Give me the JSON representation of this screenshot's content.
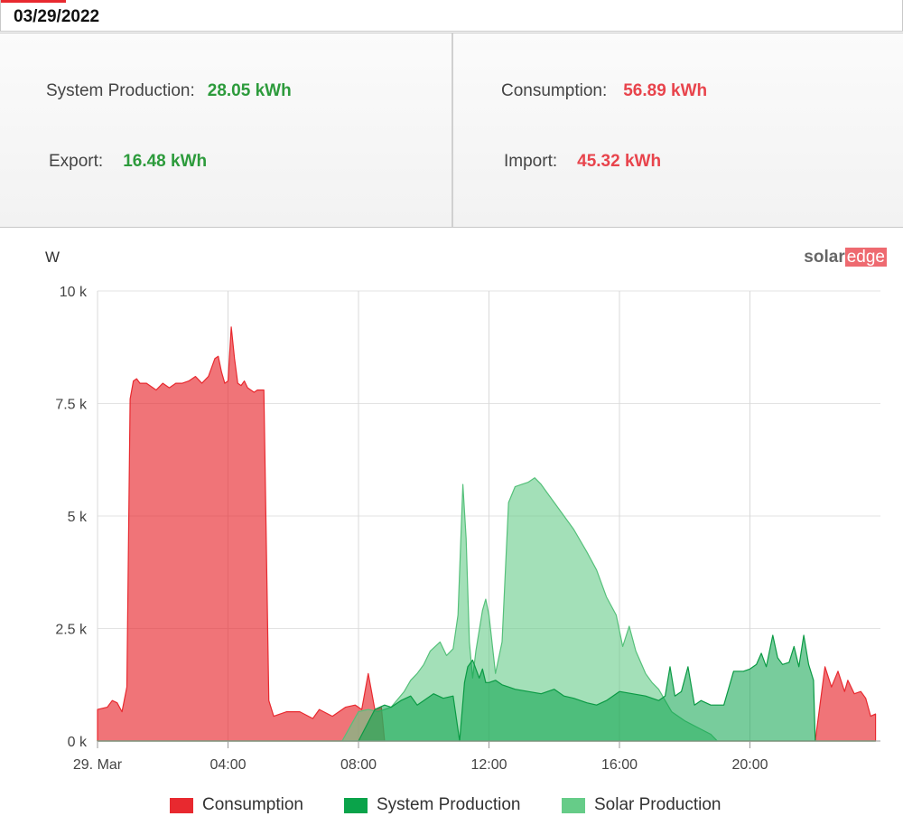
{
  "header": {
    "date": "03/29/2022"
  },
  "summary": {
    "system_production": {
      "label": "System Production:",
      "value": "28.05 kWh"
    },
    "consumption": {
      "label": "Consumption:",
      "value": "56.89 kWh"
    },
    "export": {
      "label": "Export:",
      "value": "16.48 kWh"
    },
    "import": {
      "label": "Import:",
      "value": "45.32 kWh"
    }
  },
  "logo": {
    "part1": "solar",
    "part2": "edge"
  },
  "colors": {
    "consumption": "#e8292f",
    "system_production": "#0aa34a",
    "solar_production": "#66cc88",
    "value_green": "#2d9b3c",
    "value_red": "#e8444c"
  },
  "chart_data": {
    "type": "area",
    "ylabel": "W",
    "ylim": [
      0,
      10000
    ],
    "yticks": [
      0,
      2500,
      5000,
      7500,
      10000
    ],
    "ytick_labels": [
      "0 k",
      "2.5 k",
      "5 k",
      "7.5 k",
      "10 k"
    ],
    "xlim": [
      0,
      24
    ],
    "xticks": [
      0,
      4,
      8,
      12,
      16,
      20
    ],
    "xtick_labels": [
      "29. Mar",
      "04:00",
      "08:00",
      "12:00",
      "16:00",
      "20:00"
    ],
    "grid": true,
    "legend_position": "bottom",
    "series": [
      {
        "name": "Consumption",
        "x": [
          0,
          0.3,
          0.45,
          0.6,
          0.75,
          0.9,
          1.0,
          1.1,
          1.2,
          1.3,
          1.5,
          1.8,
          2.0,
          2.2,
          2.4,
          2.6,
          2.8,
          3.0,
          3.2,
          3.4,
          3.6,
          3.7,
          3.8,
          3.9,
          4.0,
          4.1,
          4.2,
          4.3,
          4.4,
          4.5,
          4.6,
          4.8,
          4.9,
          5.1,
          5.25,
          5.4,
          5.6,
          5.8,
          6.2,
          6.6,
          6.8,
          7.2,
          7.6,
          7.9,
          8.1,
          8.3,
          8.5,
          8.7,
          8.8,
          9.0,
          10.0,
          21.5,
          21.75,
          22.0,
          22.3,
          22.5,
          22.7,
          22.9,
          23.0,
          23.2,
          23.4,
          23.55,
          23.7,
          23.85
        ],
        "y": [
          700,
          750,
          900,
          850,
          650,
          1200,
          7600,
          8000,
          8050,
          7950,
          7950,
          7800,
          7950,
          7850,
          7950,
          7950,
          8000,
          8100,
          7950,
          8100,
          8500,
          8550,
          8200,
          7950,
          8000,
          9200,
          8500,
          7950,
          7900,
          8000,
          7850,
          7750,
          7800,
          7800,
          900,
          550,
          600,
          650,
          650,
          500,
          700,
          550,
          750,
          800,
          700,
          1500,
          700,
          750,
          0,
          0,
          0,
          0,
          0,
          0,
          1650,
          1200,
          1550,
          1100,
          1350,
          1050,
          1100,
          950,
          550,
          600
        ]
      },
      {
        "name": "System Production",
        "x": [
          0,
          7.5,
          8.0,
          8.5,
          8.8,
          9.0,
          9.3,
          9.6,
          9.8,
          10.0,
          10.3,
          10.6,
          10.9,
          11.1,
          11.25,
          11.35,
          11.5,
          11.7,
          11.8,
          11.9,
          12.0,
          12.2,
          12.4,
          12.6,
          12.8,
          13.2,
          13.6,
          14.0,
          14.3,
          14.6,
          15.0,
          15.3,
          15.6,
          16.0,
          16.4,
          16.8,
          17.2,
          17.4,
          17.55,
          17.7,
          17.9,
          18.1,
          18.3,
          18.5,
          18.8,
          19.2,
          19.5,
          19.8,
          20.0,
          20.2,
          20.35,
          20.5,
          20.7,
          20.85,
          21.0,
          21.2,
          21.35,
          21.5,
          21.65,
          21.8,
          21.95,
          22.0,
          22.5,
          23.85
        ],
        "y": [
          0,
          0,
          0,
          700,
          800,
          750,
          900,
          1000,
          800,
          900,
          1050,
          950,
          1000,
          0,
          1300,
          1650,
          1800,
          1400,
          1600,
          1300,
          1300,
          1350,
          1250,
          1200,
          1150,
          1100,
          1050,
          1150,
          1000,
          950,
          850,
          800,
          900,
          1100,
          1050,
          1000,
          900,
          1000,
          1650,
          1000,
          1100,
          1650,
          800,
          900,
          800,
          800,
          1550,
          1550,
          1600,
          1700,
          1950,
          1650,
          2350,
          1850,
          1700,
          1750,
          2100,
          1650,
          2350,
          1700,
          1350,
          0,
          0,
          0
        ]
      },
      {
        "name": "Solar Production",
        "x": [
          0,
          7.5,
          8.0,
          8.3,
          8.6,
          9.0,
          9.4,
          9.6,
          9.8,
          10.0,
          10.2,
          10.5,
          10.7,
          10.9,
          11.05,
          11.2,
          11.3,
          11.4,
          11.5,
          11.6,
          11.8,
          11.9,
          12.0,
          12.2,
          12.4,
          12.6,
          12.8,
          13.0,
          13.2,
          13.4,
          13.6,
          13.8,
          14.0,
          14.3,
          14.6,
          15.0,
          15.3,
          15.6,
          15.9,
          16.1,
          16.3,
          16.5,
          16.8,
          17.0,
          17.2,
          17.4,
          17.6,
          18.0,
          18.4,
          18.8,
          19.0,
          23.85
        ],
        "y": [
          0,
          0,
          650,
          700,
          650,
          750,
          1100,
          1350,
          1500,
          1700,
          2000,
          2200,
          1900,
          2050,
          2800,
          5700,
          4500,
          2200,
          1400,
          2000,
          2900,
          3150,
          2800,
          1500,
          2200,
          5300,
          5650,
          5700,
          5750,
          5850,
          5700,
          5500,
          5300,
          5000,
          4700,
          4200,
          3800,
          3200,
          2800,
          2100,
          2550,
          2000,
          1500,
          1300,
          1150,
          900,
          650,
          450,
          300,
          150,
          0,
          0
        ]
      }
    ]
  }
}
